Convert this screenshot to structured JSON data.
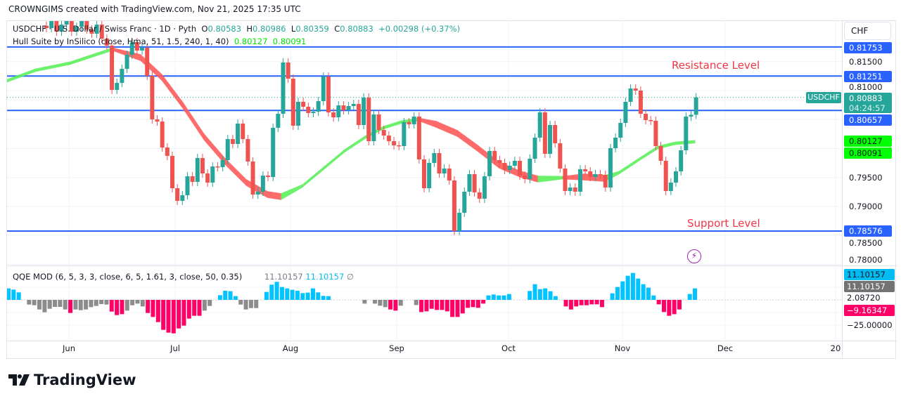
{
  "header": {
    "attribution": "CROWNGIMS created with TradingView.com, Nov 21, 2025 17:35 UTC"
  },
  "legend": {
    "symbol_line": "USDCHF · U.S. Dollar / Swiss Franc · 1D · Pyth",
    "o_label": "O",
    "o": "0.80583",
    "h_label": "H",
    "h": "0.80986",
    "l_label": "L",
    "l": "0.80359",
    "c_label": "C",
    "c": "0.80883",
    "change": "+0.00298 (+0.37%)",
    "hull_line": "Hull Suite by InSilico (close, Hma, 51, 1.5, 240, 1, 40)",
    "hull_v1": "0.80127",
    "hull_v2": "0.80091"
  },
  "annotations": {
    "resistance": "Resistance Level",
    "support": "Support Level"
  },
  "colors": {
    "up": "#26a69a",
    "down": "#ef5350",
    "level": "#2962ff",
    "hull_up": "#5cf05c",
    "hull_down": "#ff5a5a",
    "qqe_blue": "#00c3ff",
    "qqe_pink": "#ff0066",
    "qqe_gray": "#8c8c8c",
    "annotation": "#f23645"
  },
  "price_axis": {
    "currency": "CHF",
    "ticks": [
      "0.81500",
      "0.81000",
      "0.79500",
      "0.79000",
      "0.78500",
      "0.78000"
    ],
    "level_labels": [
      "0.81753",
      "0.81251",
      "0.80657",
      "0.78576"
    ],
    "hull_labels": [
      "0.80127",
      "0.80091"
    ],
    "last_price": "0.80883",
    "countdown": "04:24:57",
    "symbol_tag": "USDCHF"
  },
  "levels": [
    0.81753,
    0.81251,
    0.80657,
    0.78576
  ],
  "candles_close": [
    0.82079,
    0.822,
    0.82018,
    0.82139,
    0.82224,
    0.82018,
    0.82103,
    0.822,
    0.82054,
    0.81982,
    0.82139,
    0.81897,
    0.81776,
    0.81012,
    0.81133,
    0.81376,
    0.81618,
    0.81836,
    0.81691,
    0.81739,
    0.81255,
    0.80503,
    0.80467,
    0.80018,
    0.79873,
    0.79315,
    0.79097,
    0.79194,
    0.79521,
    0.79424,
    0.79836,
    0.7957,
    0.79412,
    0.79691,
    0.79679,
    0.798,
    0.80164,
    0.80079,
    0.8043,
    0.80164,
    0.79776,
    0.79206,
    0.79255,
    0.79533,
    0.79509,
    0.80358,
    0.806,
    0.81485,
    0.81206,
    0.80394,
    0.80806,
    0.80721,
    0.80612,
    0.80636,
    0.80818,
    0.81242,
    0.80624,
    0.80539,
    0.80745,
    0.80661,
    0.80733,
    0.8077,
    0.80406,
    0.80879,
    0.80127,
    0.80588,
    0.80321,
    0.80224,
    0.80127,
    0.80055,
    0.80042,
    0.80455,
    0.80418,
    0.80552,
    0.79812,
    0.79315,
    0.79752,
    0.79921,
    0.7957,
    0.79655,
    0.79449,
    0.78576,
    0.78891,
    0.79255,
    0.79558,
    0.79243,
    0.79134,
    0.79521,
    0.79958,
    0.798,
    0.79752,
    0.7963,
    0.79703,
    0.79788,
    0.79533,
    0.79473,
    0.79824,
    0.80188,
    0.80624,
    0.79909,
    0.80406,
    0.80091,
    0.79655,
    0.79267,
    0.79327,
    0.79255,
    0.79643,
    0.79606,
    0.79509,
    0.79558,
    0.79546,
    0.79327,
    0.80006,
    0.80188,
    0.80442,
    0.80806,
    0.81036,
    0.81,
    0.806,
    0.80491,
    0.80479,
    0.80042,
    0.79788,
    0.79267,
    0.79412,
    0.79606,
    0.7997,
    0.80552,
    0.80583,
    0.80883
  ],
  "hull": [
    [
      -7.8,
      0.8117,
      "up"
    ],
    [
      -2.2,
      0.81351,
      "up"
    ],
    [
      4.7,
      0.81473,
      "up"
    ],
    [
      8.9,
      0.81594,
      "up"
    ],
    [
      13.1,
      0.81715,
      "up"
    ],
    [
      18.7,
      0.8157,
      "down"
    ],
    [
      22.9,
      0.8123,
      "down"
    ],
    [
      27.1,
      0.80745,
      "down"
    ],
    [
      31.3,
      0.802,
      "down"
    ],
    [
      35.5,
      0.79776,
      "down"
    ],
    [
      39.7,
      0.79412,
      "down"
    ],
    [
      43.9,
      0.79206,
      "down"
    ],
    [
      46.6,
      0.7917,
      "down"
    ],
    [
      50.8,
      0.79352,
      "up"
    ],
    [
      55.0,
      0.79655,
      "up"
    ],
    [
      59.2,
      0.79958,
      "up"
    ],
    [
      63.4,
      0.802,
      "up"
    ],
    [
      66.9,
      0.80358,
      "up"
    ],
    [
      70.4,
      0.80455,
      "up"
    ],
    [
      73.9,
      0.80503,
      "up"
    ],
    [
      77.4,
      0.80418,
      "down"
    ],
    [
      81.6,
      0.80261,
      "down"
    ],
    [
      85.8,
      0.79994,
      "down"
    ],
    [
      89.9,
      0.79715,
      "down"
    ],
    [
      94.1,
      0.79558,
      "down"
    ],
    [
      97.6,
      0.79473,
      "down"
    ],
    [
      102.5,
      0.79497,
      "up"
    ],
    [
      106.7,
      0.79509,
      "down"
    ],
    [
      110.9,
      0.79485,
      "down"
    ],
    [
      113.7,
      0.79582,
      "up"
    ],
    [
      117.9,
      0.79824,
      "up"
    ],
    [
      121.4,
      0.80018,
      "up"
    ],
    [
      124.9,
      0.80091,
      "up"
    ],
    [
      128.8,
      0.80117,
      "up"
    ]
  ],
  "qqe": {
    "legend": "QQE MOD (6, 5, 3, 3, close, 6, 5, 1.61, 3, close, 50, 0.35)",
    "v1": "11.10157",
    "v2": "11.10157",
    "v3": "∅",
    "axis_labels": {
      "blue": "11.10157",
      "gray": "11.10157",
      "mid": "2.08720",
      "pink": "−9.16347",
      "low": "−25.00000"
    },
    "bars": [
      [
        11.06,
        "b"
      ],
      [
        9.93,
        "b"
      ],
      [
        7.22,
        "b"
      ],
      [
        0,
        "g"
      ],
      [
        -4.51,
        "g"
      ],
      [
        -5.19,
        "g"
      ],
      [
        -9.25,
        "g"
      ],
      [
        -11.96,
        "g"
      ],
      [
        -8.58,
        "g"
      ],
      [
        -6.77,
        "g"
      ],
      [
        -6.77,
        "g"
      ],
      [
        -9.25,
        "g"
      ],
      [
        -12.64,
        "p"
      ],
      [
        -9.25,
        "g"
      ],
      [
        -9.93,
        "g"
      ],
      [
        -9.25,
        "g"
      ],
      [
        -7.0,
        "g"
      ],
      [
        -5.87,
        "g"
      ],
      [
        -4.06,
        "g"
      ],
      [
        -4.51,
        "g"
      ],
      [
        -11.29,
        "p"
      ],
      [
        -14.67,
        "p"
      ],
      [
        -13.77,
        "p"
      ],
      [
        -10.38,
        "g"
      ],
      [
        -5.19,
        "g"
      ],
      [
        -3.61,
        "g"
      ],
      [
        -6.32,
        "g"
      ],
      [
        -12.64,
        "p"
      ],
      [
        -16.48,
        "p"
      ],
      [
        -21.44,
        "p"
      ],
      [
        -28.89,
        "p"
      ],
      [
        -31.6,
        "p"
      ],
      [
        -32.28,
        "p"
      ],
      [
        -27.54,
        "p"
      ],
      [
        -24.83,
        "p"
      ],
      [
        -18.06,
        "p"
      ],
      [
        -15.35,
        "p"
      ],
      [
        -15.35,
        "p"
      ],
      [
        -10.38,
        "g"
      ],
      [
        -5.87,
        "g"
      ],
      [
        0,
        "g"
      ],
      [
        4.51,
        "b"
      ],
      [
        8.8,
        "b"
      ],
      [
        8.35,
        "b"
      ],
      [
        3.61,
        "b"
      ],
      [
        -4.51,
        "g"
      ],
      [
        -9.25,
        "g"
      ],
      [
        -7.9,
        "g"
      ],
      [
        -7.9,
        "g"
      ],
      [
        0,
        "g"
      ],
      [
        7.67,
        "b"
      ],
      [
        14.67,
        "b"
      ],
      [
        17.38,
        "b"
      ],
      [
        12.41,
        "b"
      ],
      [
        11.06,
        "b"
      ],
      [
        9.71,
        "b"
      ],
      [
        8.8,
        "b"
      ],
      [
        6.55,
        "b"
      ],
      [
        7.0,
        "b"
      ],
      [
        11.06,
        "b"
      ],
      [
        7.22,
        "b"
      ],
      [
        3.84,
        "b"
      ],
      [
        3.61,
        "b"
      ],
      [
        0,
        "g"
      ],
      [
        0,
        "g"
      ],
      [
        0,
        "g"
      ],
      [
        0,
        "g"
      ],
      [
        0,
        "g"
      ],
      [
        0,
        "g"
      ],
      [
        -3.61,
        "g"
      ],
      [
        0,
        "g"
      ],
      [
        -3.61,
        "g"
      ],
      [
        -5.64,
        "g"
      ],
      [
        -7.0,
        "g"
      ],
      [
        -9.25,
        "p"
      ],
      [
        -10.38,
        "p"
      ],
      [
        -5.64,
        "g"
      ],
      [
        0,
        "g"
      ],
      [
        0,
        "g"
      ],
      [
        -4.97,
        "g"
      ],
      [
        -11.74,
        "p"
      ],
      [
        -11.06,
        "p"
      ],
      [
        -8.58,
        "p"
      ],
      [
        -9.71,
        "p"
      ],
      [
        -9.71,
        "p"
      ],
      [
        -11.06,
        "p"
      ],
      [
        -16.48,
        "p"
      ],
      [
        -16.48,
        "p"
      ],
      [
        -13.09,
        "p"
      ],
      [
        -7.67,
        "p"
      ],
      [
        -7.0,
        "p"
      ],
      [
        -7.67,
        "p"
      ],
      [
        -3.61,
        "p"
      ],
      [
        4.29,
        "b"
      ],
      [
        5.19,
        "b"
      ],
      [
        4.29,
        "b"
      ],
      [
        4.29,
        "b"
      ],
      [
        5.64,
        "b"
      ],
      [
        0,
        "g"
      ],
      [
        0,
        "g"
      ],
      [
        0,
        "g"
      ],
      [
        8.58,
        "b"
      ],
      [
        15.12,
        "b"
      ],
      [
        10.38,
        "b"
      ],
      [
        11.06,
        "b"
      ],
      [
        8.35,
        "b"
      ],
      [
        3.61,
        "b"
      ],
      [
        0,
        "g"
      ],
      [
        -6.32,
        "p"
      ],
      [
        -9.25,
        "p"
      ],
      [
        -6.32,
        "p"
      ],
      [
        -5.19,
        "p"
      ],
      [
        -5.19,
        "p"
      ],
      [
        -4.29,
        "p"
      ],
      [
        -4.29,
        "p"
      ],
      [
        -7.0,
        "p"
      ],
      [
        0,
        "g"
      ],
      [
        6.32,
        "b"
      ],
      [
        12.41,
        "b"
      ],
      [
        17.83,
        "b"
      ],
      [
        23.25,
        "b"
      ],
      [
        25.96,
        "b"
      ],
      [
        20.54,
        "b"
      ],
      [
        15.12,
        "b"
      ],
      [
        11.74,
        "b"
      ],
      [
        4.29,
        "b"
      ],
      [
        -4.29,
        "p"
      ],
      [
        -11.74,
        "p"
      ],
      [
        -15.35,
        "p"
      ],
      [
        -13.77,
        "p"
      ],
      [
        -9.25,
        "p"
      ],
      [
        0,
        "g"
      ],
      [
        5.64,
        "b"
      ],
      [
        11.06,
        "b"
      ]
    ]
  },
  "time_axis": [
    "Jun",
    "Jul",
    "Aug",
    "Sep",
    "Oct",
    "Nov",
    "Dec",
    "20"
  ],
  "footer": {
    "brand": "TradingView"
  }
}
